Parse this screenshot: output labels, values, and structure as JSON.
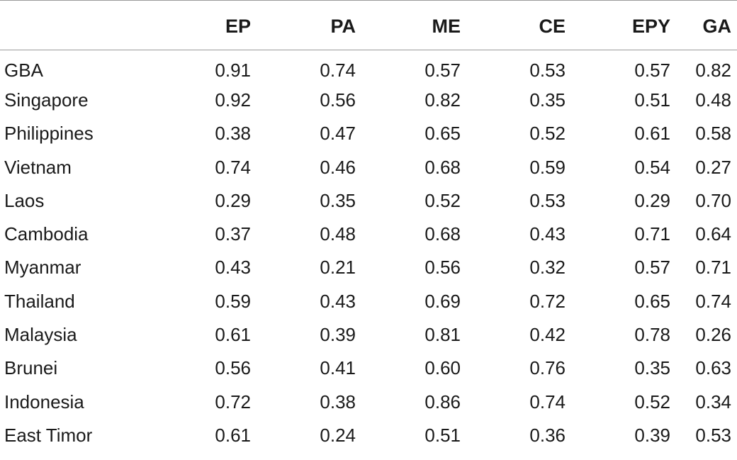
{
  "table": {
    "columns": [
      "",
      "EP",
      "PA",
      "ME",
      "CE",
      "EPY",
      "GA"
    ],
    "rows": [
      {
        "name": "GBA",
        "values": [
          "0.91",
          "0.74",
          "0.57",
          "0.53",
          "0.57",
          "0.82"
        ]
      },
      {
        "name": "Singapore",
        "values": [
          "0.92",
          "0.56",
          "0.82",
          "0.35",
          "0.51",
          "0.48"
        ]
      },
      {
        "name": "Philippines",
        "values": [
          "0.38",
          "0.47",
          "0.65",
          "0.52",
          "0.61",
          "0.58"
        ]
      },
      {
        "name": "Vietnam",
        "values": [
          "0.74",
          "0.46",
          "0.68",
          "0.59",
          "0.54",
          "0.27"
        ]
      },
      {
        "name": "Laos",
        "values": [
          "0.29",
          "0.35",
          "0.52",
          "0.53",
          "0.29",
          "0.70"
        ]
      },
      {
        "name": "Cambodia",
        "values": [
          "0.37",
          "0.48",
          "0.68",
          "0.43",
          "0.71",
          "0.64"
        ]
      },
      {
        "name": "Myanmar",
        "values": [
          "0.43",
          "0.21",
          "0.56",
          "0.32",
          "0.57",
          "0.71"
        ]
      },
      {
        "name": "Thailand",
        "values": [
          "0.59",
          "0.43",
          "0.69",
          "0.72",
          "0.65",
          "0.74"
        ]
      },
      {
        "name": "Malaysia",
        "values": [
          "0.61",
          "0.39",
          "0.81",
          "0.42",
          "0.78",
          "0.26"
        ]
      },
      {
        "name": "Brunei",
        "values": [
          "0.56",
          "0.41",
          "0.60",
          "0.76",
          "0.35",
          "0.63"
        ]
      },
      {
        "name": "Indonesia",
        "values": [
          "0.72",
          "0.38",
          "0.86",
          "0.74",
          "0.52",
          "0.34"
        ]
      },
      {
        "name": "East Timor",
        "values": [
          "0.61",
          "0.24",
          "0.51",
          "0.36",
          "0.39",
          "0.53"
        ]
      }
    ]
  }
}
